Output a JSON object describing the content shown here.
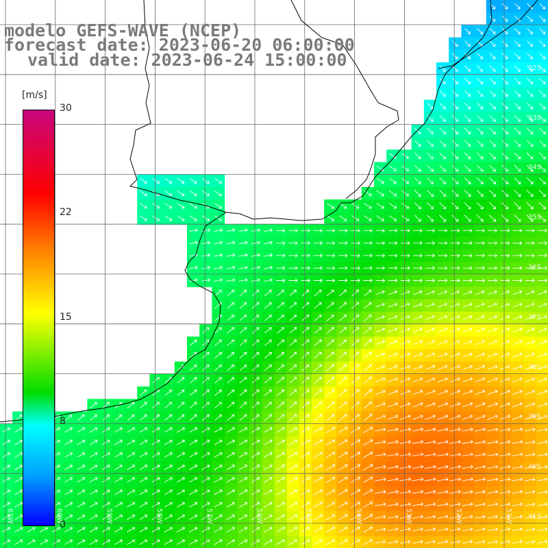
{
  "titles": {
    "model": "modelo GEFS-WAVE (NCEP)",
    "forecast": "forecast date: 2023-06-20 06:00:00",
    "valid": "valid date: 2023-06-24 15:00:00"
  },
  "colorbar": {
    "unit": "[m/s]",
    "ticks": [
      "30",
      "22",
      "15",
      "8",
      "0"
    ],
    "colors": [
      "#0000ff",
      "#00a0ff",
      "#00ffff",
      "#00dd00",
      "#ffff00",
      "#ff7a00",
      "#ff0000",
      "#c8067d"
    ]
  },
  "lat_labels": [
    "32S",
    "33S",
    "34S",
    "35S",
    "36S",
    "37S",
    "38S",
    "39S",
    "40S",
    "41S"
  ],
  "lon_labels": [
    "61W",
    "60W",
    "59W",
    "58W",
    "57W",
    "56W",
    "55W",
    "54W",
    "53W",
    "52W",
    "51W"
  ],
  "colors": {
    "land": "#ffffff",
    "coast": "#000000",
    "grid": "#666666",
    "arrow": "#ffffff",
    "title": "#7a7a7a"
  }
}
